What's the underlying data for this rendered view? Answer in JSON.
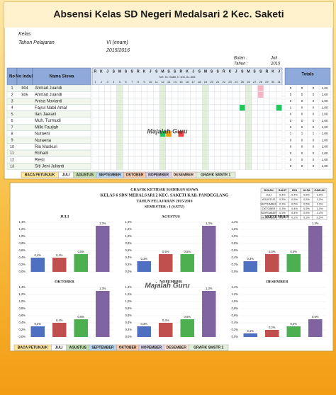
{
  "sheet": {
    "title": "Absensi Kelas SD Negeri Medalsari 2 Kec. Saketi",
    "kelas": "Kelas",
    "tahun_pelajaran": "Tahun Pelajaran",
    "kelas_value": "VI (enam)",
    "tahun_value": "2015/2016",
    "bulan": "Bulan :",
    "bulan_value": "Juli",
    "tahun": "Tahun :",
    "tahun_bulan_value": "2015",
    "headers": [
      "No",
      "No Induk",
      "Nama Siswa"
    ],
    "totals_header": "Totals",
    "note": "Ket: S= Sakit, I= Izin, A= Alfa",
    "day_letters": [
      "R",
      "K",
      "J",
      "S",
      "M",
      "S",
      "S",
      "R",
      "K",
      "J",
      "S",
      "M",
      "S",
      "S",
      "R",
      "K",
      "J",
      "S",
      "M",
      "S",
      "S",
      "R",
      "K",
      "J",
      "S",
      "M",
      "S",
      "S",
      "R",
      "K",
      "J"
    ],
    "days": [
      1,
      2,
      3,
      4,
      5,
      6,
      7,
      8,
      9,
      10,
      11,
      12,
      13,
      14,
      15,
      16,
      17,
      18,
      19,
      20,
      21,
      22,
      23,
      24,
      25,
      26,
      27,
      28,
      29,
      30,
      31
    ],
    "rows": [
      {
        "no": 1,
        "induk": "804",
        "name": "Ahmad Juandi",
        "totals": [
          "0",
          "0",
          "0",
          "1,00"
        ]
      },
      {
        "no": 2,
        "induk": "805",
        "name": "Ahmad Juandi",
        "totals": [
          "0",
          "0",
          "0",
          "1,00"
        ]
      },
      {
        "no": 3,
        "name": "Anisa Novianti",
        "totals": [
          "0",
          "0",
          "0",
          "1,00"
        ]
      },
      {
        "no": 4,
        "name": "Fajrul Nabil Amal",
        "totals": [
          "1",
          "0",
          "0",
          "1,00"
        ]
      },
      {
        "no": 5,
        "name": "Ilan Jaelani",
        "totals": [
          "0",
          "0",
          "0",
          "1,00"
        ]
      },
      {
        "no": 6,
        "name": "Muh. Turmudi",
        "totals": [
          "0",
          "0",
          "0",
          "1,00"
        ]
      },
      {
        "no": 7,
        "name": "Milki Faujiah",
        "totals": [
          "0",
          "0",
          "0",
          "1,00"
        ]
      },
      {
        "no": 8,
        "name": "Nuraeni",
        "totals": [
          "1",
          "1",
          "1",
          "1,00"
        ]
      },
      {
        "no": 9,
        "name": "Nuraena",
        "totals": [
          "0",
          "0",
          "0",
          "1,00"
        ]
      },
      {
        "no": 10,
        "name": "Rio Maskuri",
        "totals": [
          "0",
          "0",
          "0",
          "1,00"
        ]
      },
      {
        "no": 11,
        "name": "Rohadi",
        "totals": [
          "0",
          "0",
          "0",
          "1,00"
        ]
      },
      {
        "no": 12,
        "name": "Resti",
        "totals": [
          "0",
          "0",
          "0",
          "1,00"
        ]
      },
      {
        "no": 13,
        "name": "Siti Jeni Julianti",
        "totals": [
          "0",
          "0",
          "0",
          "1,00"
        ]
      }
    ],
    "marks": [
      {
        "row": 0,
        "day": 28,
        "color": "#f4b6c2"
      },
      {
        "row": 1,
        "day": 28,
        "color": "#f4b6c2"
      },
      {
        "row": 3,
        "day": 25,
        "color": "#22c55e"
      },
      {
        "row": 3,
        "day": 31,
        "color": "#22c55e"
      },
      {
        "row": 7,
        "day": 12,
        "color": "#22c55e"
      },
      {
        "row": 7,
        "day": 13,
        "color": "#f59e0b"
      },
      {
        "row": 7,
        "day": 15,
        "color": "#ef4444"
      }
    ],
    "tabs": [
      "BACA PETUNJUK",
      "JULI",
      "AGUSTUS",
      "SEPTEMBER",
      "OKTOBER",
      "NOPEMBER",
      "DESEMBER",
      "GRAFIK SMSTR 1"
    ]
  },
  "report": {
    "title": [
      "GRAFIK KETIDAK HADIRAN SISWA",
      "KELAS 6 SDN MEDALSARI 2 KEC. SAKETI KAB. PANDEGLANG",
      "TAHUN PELAJARAN 2015/2016",
      "SEMESTER : I (SATU)"
    ],
    "table": {
      "headers": [
        "BULAN",
        "SAKIT",
        "IZIN",
        "ALFA",
        "JUMLAH"
      ],
      "rows": [
        [
          "JULI",
          "0,4%",
          "0,4%",
          "0,5%",
          "1,3%"
        ],
        [
          "AGUSTUS",
          "0,3%",
          "0,5%",
          "0,5%",
          "1,3%"
        ],
        [
          "SEPTEMBER",
          "0,3%",
          "0,5%",
          "0,5%",
          "1,3%"
        ],
        [
          "OKTOBER",
          "0,3%",
          "0,4%",
          "0,5%",
          "1,3%"
        ],
        [
          "NOPEMBER",
          "0,3%",
          "0,4%",
          "0,5%",
          "1,3%"
        ],
        [
          "DESEMBER",
          "0,1%",
          "0,2%",
          "0,3%",
          "0,5%"
        ]
      ]
    },
    "watermark": "Majalah Guru",
    "tabs": [
      "BACA PETUNJUK",
      "JULI",
      "AGUSTUS",
      "SEPTEMBER",
      "OKTOBER",
      "NOPEMBER",
      "DESEMBER",
      "GRAFIK SMSTR 1"
    ]
  },
  "chart_data": [
    {
      "type": "bar",
      "title": "JULI",
      "values": [
        0.4,
        0.4,
        0.5,
        1.3
      ],
      "value_labels": [
        "0,4%",
        "0,4%",
        "0,5%",
        "1,3%"
      ],
      "colors": [
        "#4f6fc0",
        "#c0504d",
        "#4caf50",
        "#8064a2"
      ],
      "ylim": [
        0,
        1.4
      ],
      "yticks": [
        {
          "value": 0,
          "label": "0,0%"
        },
        {
          "value": 0.2,
          "label": "0,2%"
        },
        {
          "value": 0.4,
          "label": "0,4%"
        },
        {
          "value": 0.6,
          "label": "0,6%"
        },
        {
          "value": 0.8,
          "label": "0,8%"
        },
        {
          "value": 1,
          "label": "1,0%"
        },
        {
          "value": 1.2,
          "label": "1,2%"
        },
        {
          "value": 1.4,
          "label": "1,4%"
        }
      ],
      "grid": true
    },
    {
      "type": "bar",
      "title": "AGUSTUS",
      "values": [
        0.3,
        0.5,
        0.5,
        1.3
      ],
      "value_labels": [
        "0,3%",
        "0,5%",
        "0,5%",
        "1,3%"
      ],
      "colors": [
        "#4f6fc0",
        "#c0504d",
        "#4caf50",
        "#8064a2"
      ],
      "ylim": [
        0,
        1.4
      ],
      "yticks": [
        {
          "value": 0,
          "label": "0,0%"
        },
        {
          "value": 0.2,
          "label": "0,2%"
        },
        {
          "value": 0.4,
          "label": "0,4%"
        },
        {
          "value": 0.6,
          "label": "0,6%"
        },
        {
          "value": 0.8,
          "label": "0,8%"
        },
        {
          "value": 1,
          "label": "1,0%"
        },
        {
          "value": 1.2,
          "label": "1,2%"
        },
        {
          "value": 1.4,
          "label": "1,4%"
        }
      ],
      "grid": true
    },
    {
      "type": "bar",
      "title": "SEPTEMBER",
      "values": [
        0.3,
        0.5,
        0.5,
        1.3
      ],
      "value_labels": [
        "0,3%",
        "0,5%",
        "0,5%",
        "1,3%"
      ],
      "colors": [
        "#4f6fc0",
        "#c0504d",
        "#4caf50",
        "#8064a2"
      ],
      "ylim": [
        0,
        1.4
      ],
      "yticks": [
        {
          "value": 0,
          "label": "0,0%"
        },
        {
          "value": 0.2,
          "label": "0,2%"
        },
        {
          "value": 0.4,
          "label": "0,4%"
        },
        {
          "value": 0.6,
          "label": "0,6%"
        },
        {
          "value": 0.8,
          "label": "0,8%"
        },
        {
          "value": 1,
          "label": "1,0%"
        },
        {
          "value": 1.2,
          "label": "1,2%"
        },
        {
          "value": 1.4,
          "label": "1,4%"
        }
      ],
      "grid": true
    },
    {
      "type": "bar",
      "title": "OKTOBER",
      "values": [
        0.3,
        0.4,
        0.5,
        1.3
      ],
      "value_labels": [
        "0,3%",
        "0,4%",
        "0,5%",
        "1,3%"
      ],
      "colors": [
        "#4f6fc0",
        "#c0504d",
        "#4caf50",
        "#8064a2"
      ],
      "ylim": [
        0,
        1.4
      ],
      "yticks": [
        {
          "value": 0,
          "label": "0,0%"
        },
        {
          "value": 0.2,
          "label": "0,2%"
        },
        {
          "value": 0.4,
          "label": "0,4%"
        },
        {
          "value": 0.6,
          "label": "0,6%"
        },
        {
          "value": 0.8,
          "label": "0,8%"
        },
        {
          "value": 1,
          "label": "1,0%"
        },
        {
          "value": 1.2,
          "label": "1,2%"
        },
        {
          "value": 1.4,
          "label": "1,4%"
        }
      ],
      "grid": true
    },
    {
      "type": "bar",
      "title": "NOPEMBER",
      "values": [
        0.3,
        0.4,
        0.5,
        1.3
      ],
      "value_labels": [
        "0,3%",
        "0,4%",
        "0,5%",
        "1,3%"
      ],
      "colors": [
        "#4f6fc0",
        "#c0504d",
        "#4caf50",
        "#8064a2"
      ],
      "ylim": [
        0,
        1.4
      ],
      "yticks": [
        {
          "value": 0,
          "label": "0,0%"
        },
        {
          "value": 0.2,
          "label": "0,2%"
        },
        {
          "value": 0.4,
          "label": "0,4%"
        },
        {
          "value": 0.6,
          "label": "0,6%"
        },
        {
          "value": 0.8,
          "label": "0,8%"
        },
        {
          "value": 1,
          "label": "1,0%"
        },
        {
          "value": 1.2,
          "label": "1,2%"
        },
        {
          "value": 1.4,
          "label": "1,4%"
        }
      ],
      "grid": true
    },
    {
      "type": "bar",
      "title": "DESEMBER",
      "values": [
        0.1,
        0.2,
        0.3,
        0.5
      ],
      "value_labels": [
        "0,1%",
        "0,2%",
        "0,3%",
        "0,5%"
      ],
      "colors": [
        "#4f6fc0",
        "#c0504d",
        "#4caf50",
        "#8064a2"
      ],
      "ylim": [
        0,
        1.4
      ],
      "yticks": [
        {
          "value": 0,
          "label": "0,0%"
        },
        {
          "value": 0.2,
          "label": "0,2%"
        },
        {
          "value": 0.4,
          "label": "0,4%"
        },
        {
          "value": 0.6,
          "label": "0,6%"
        },
        {
          "value": 0.8,
          "label": "0,8%"
        },
        {
          "value": 1,
          "label": "1,0%"
        },
        {
          "value": 1.2,
          "label": "1,2%"
        },
        {
          "value": 1.4,
          "label": "1,4%"
        }
      ],
      "grid": true
    }
  ]
}
